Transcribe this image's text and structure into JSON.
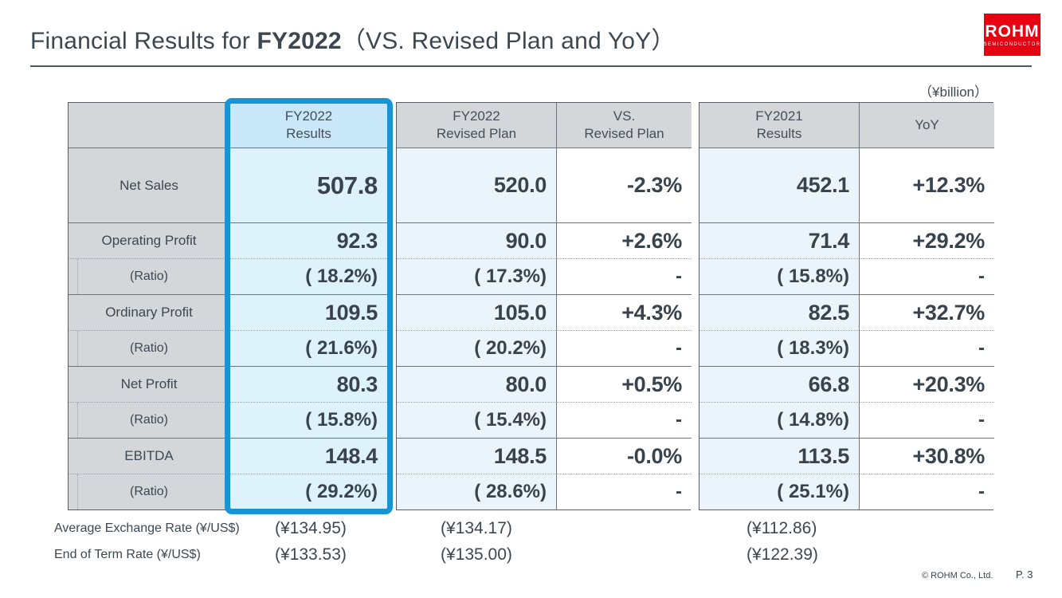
{
  "title": {
    "prefix": "Financial Results for ",
    "year": "FY2022",
    "suffix": "（VS. Revised Plan and YoY）"
  },
  "logo": {
    "brand": "ROHM",
    "sub": "SEMICONDUCTOR"
  },
  "unit_label": "（¥billion）",
  "headers": {
    "results": {
      "line1": "FY2022",
      "line2": "Results"
    },
    "plan": {
      "line1": "FY2022",
      "line2": "Revised Plan"
    },
    "vs_plan": {
      "line1": "VS.",
      "line2": "Revised Plan"
    },
    "fy2021": {
      "line1": "FY2021",
      "line2": "Results"
    },
    "yoy": {
      "line1": "YoY",
      "line2": ""
    }
  },
  "rows": [
    {
      "label": "Net Sales",
      "results": "507.8",
      "plan": "520.0",
      "vs_plan": "-2.3%",
      "fy2021": "452.1",
      "yoy": "+12.3%"
    },
    {
      "label": "Operating Profit",
      "results": "92.3",
      "plan": "90.0",
      "vs_plan": "+2.6%",
      "fy2021": "71.4",
      "yoy": "+29.2%"
    },
    {
      "label": "(Ratio)",
      "results": "( 18.2%)",
      "plan": "( 17.3%)",
      "vs_plan": "-",
      "fy2021": "( 15.8%)",
      "yoy": "-"
    },
    {
      "label": "Ordinary Profit",
      "results": "109.5",
      "plan": "105.0",
      "vs_plan": "+4.3%",
      "fy2021": "82.5",
      "yoy": "+32.7%"
    },
    {
      "label": "(Ratio)",
      "results": "( 21.6%)",
      "plan": "( 20.2%)",
      "vs_plan": "-",
      "fy2021": "( 18.3%)",
      "yoy": "-"
    },
    {
      "label": "Net Profit",
      "results": "80.3",
      "plan": "80.0",
      "vs_plan": "+0.5%",
      "fy2021": "66.8",
      "yoy": "+20.3%"
    },
    {
      "label": "(Ratio)",
      "results": "( 15.8%)",
      "plan": "( 15.4%)",
      "vs_plan": "-",
      "fy2021": "( 14.8%)",
      "yoy": "-"
    },
    {
      "label": "EBITDA",
      "results": "148.4",
      "plan": "148.5",
      "vs_plan": "-0.0%",
      "fy2021": "113.5",
      "yoy": "+30.8%"
    },
    {
      "label": "(Ratio)",
      "results": "( 29.2%)",
      "plan": "( 28.6%)",
      "vs_plan": "-",
      "fy2021": "( 25.1%)",
      "yoy": "-"
    }
  ],
  "exchange": {
    "rows": [
      {
        "label": "Average Exchange Rate (¥/US$)",
        "results": "(¥134.95)",
        "plan": "(¥134.17)",
        "fy2021": "(¥112.86)"
      },
      {
        "label": "End of Term Rate (¥/US$)",
        "results": "(¥133.53)",
        "plan": "(¥135.00)",
        "fy2021": "(¥122.39)"
      }
    ]
  },
  "footer": {
    "copyright": "©  ROHM Co., Ltd.",
    "page": "P. 3"
  },
  "colors": {
    "accent_blue": "#1894d4",
    "header_gray": "#d4d7d9",
    "results_header_blue": "#c8e8f9",
    "results_body_blue": "#def2fc",
    "light_blue_body": "#ebf4fa",
    "logo_red": "#e60012",
    "text": "#3d4751"
  }
}
